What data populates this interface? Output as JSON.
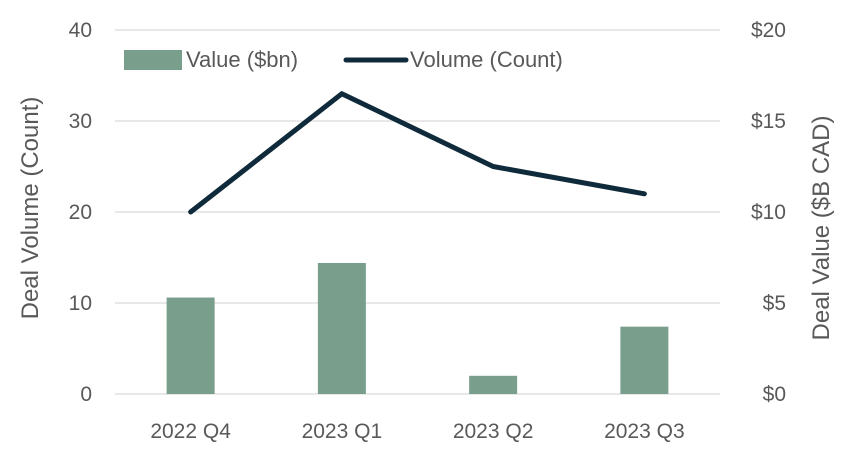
{
  "chart_data": {
    "type": "bar+line",
    "categories": [
      "2022 Q4",
      "2023 Q1",
      "2023 Q2",
      "2023 Q3"
    ],
    "series": [
      {
        "name": "Value ($bn)",
        "type": "bar",
        "axis": "right",
        "values": [
          5.3,
          7.2,
          1.0,
          3.7
        ],
        "color": "#7a9e8c"
      },
      {
        "name": "Volume (Count)",
        "type": "line",
        "axis": "left",
        "values": [
          20,
          33,
          25,
          22
        ],
        "color": "#0f2a3a"
      }
    ],
    "left_axis": {
      "label": "Deal Volume (Count)",
      "ylim": [
        0,
        40
      ],
      "ticks": [
        "0",
        "10",
        "20",
        "30",
        "40"
      ]
    },
    "right_axis": {
      "label": "Deal Value ($B CAD)",
      "ylim": [
        0,
        20
      ],
      "ticks": [
        "$0",
        "$5",
        "$10",
        "$15",
        "$20"
      ]
    },
    "legend": {
      "placement": "top-left",
      "entries": [
        "Value ($bn)",
        "Volume (Count)"
      ]
    },
    "grid": true
  }
}
